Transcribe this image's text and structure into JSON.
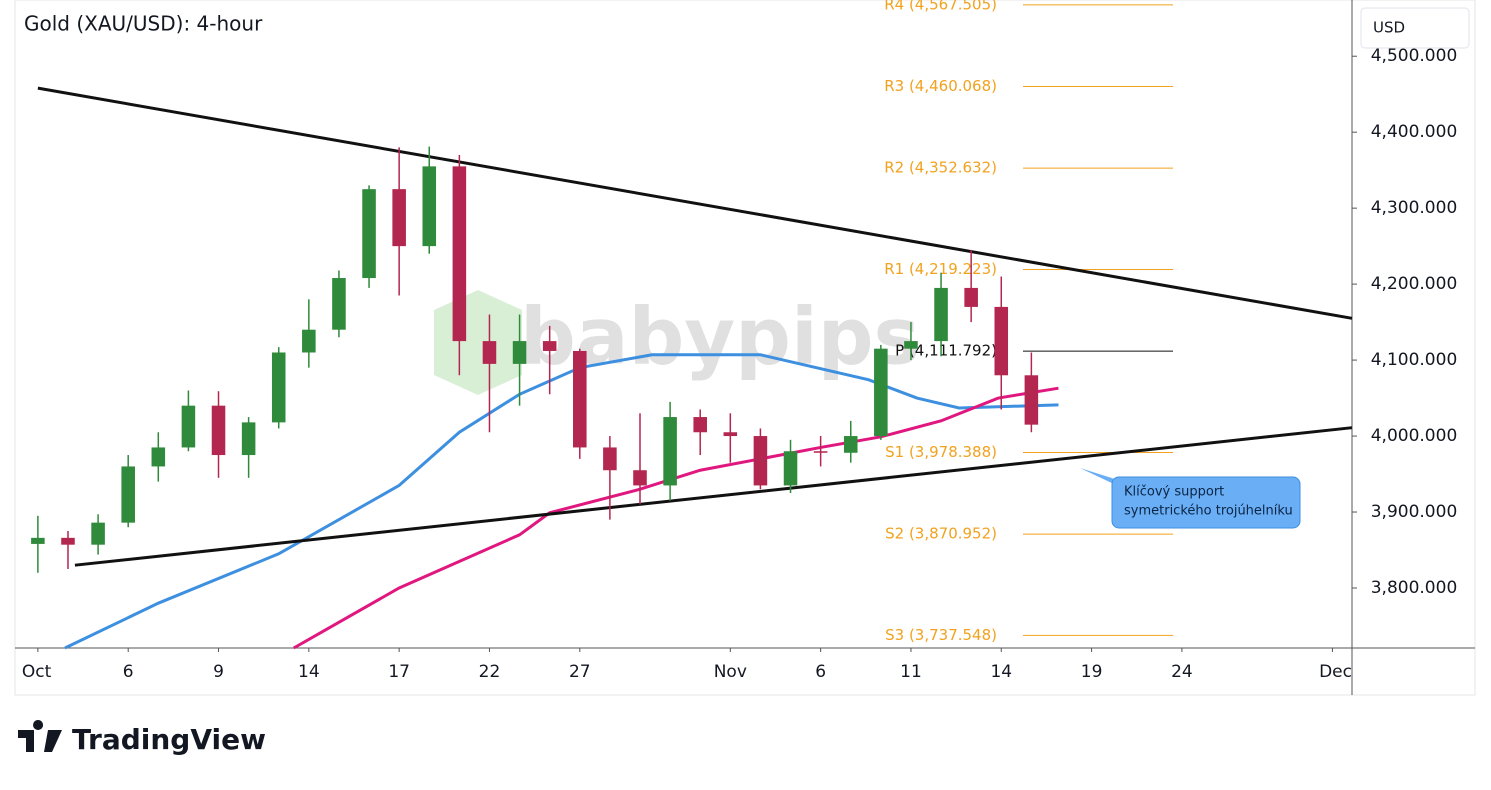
{
  "chart_data": {
    "type": "candlestick",
    "title": "Gold (XAU/USD): 4-hour",
    "currency": "USD",
    "watermark": "babypips",
    "brand": "TradingView",
    "annotation": [
      "Klíčový support",
      "symetrického trojúhelníku"
    ],
    "up_color": "#2f8a3b",
    "down_color": "#b3264f",
    "xlim": [
      -0.76,
      43.65
    ],
    "xticks": [
      {
        "value": 0,
        "label": "Oct"
      },
      {
        "value": 3,
        "label": "6"
      },
      {
        "value": 6,
        "label": "9"
      },
      {
        "value": 9,
        "label": "14"
      },
      {
        "value": 12,
        "label": "17"
      },
      {
        "value": 15,
        "label": "22"
      },
      {
        "value": 18,
        "label": "27"
      },
      {
        "value": 23,
        "label": "Nov"
      },
      {
        "value": 26,
        "label": "6"
      },
      {
        "value": 29,
        "label": "11"
      },
      {
        "value": 32,
        "label": "14"
      },
      {
        "value": 35,
        "label": "19"
      },
      {
        "value": 38,
        "label": "24"
      },
      {
        "value": 43,
        "label": "Dec"
      }
    ],
    "ylim": [
      3721,
      4574
    ],
    "yticks": [
      {
        "value": 3800,
        "label": "3,800.000"
      },
      {
        "value": 3900,
        "label": "3,900.000"
      },
      {
        "value": 4000,
        "label": "4,000.000"
      },
      {
        "value": 4100,
        "label": "4,100.000"
      },
      {
        "value": 4200,
        "label": "4,200.000"
      },
      {
        "value": 4300,
        "label": "4,300.000"
      },
      {
        "value": 4400,
        "label": "4,400.000"
      },
      {
        "value": 4500,
        "label": "4,500.000"
      }
    ],
    "x": [
      0,
      1,
      2,
      3,
      4,
      5,
      6,
      7,
      8,
      9,
      10,
      11,
      12,
      13,
      14,
      15,
      16,
      17,
      18,
      19,
      20,
      21,
      22,
      23,
      24,
      25,
      26,
      27,
      28,
      29,
      30,
      31,
      32,
      33
    ],
    "open": [
      3858,
      3866,
      3857,
      3886,
      3960,
      3985,
      4040,
      3975,
      4018,
      4110,
      4140,
      4208,
      4325,
      4250,
      4355,
      4125,
      4095,
      4125,
      4112,
      3985,
      3955,
      3935,
      4025,
      4005,
      4000,
      3935,
      3980,
      3978,
      4000,
      4115,
      4125,
      4195,
      4170,
      4080
    ],
    "high": [
      3895,
      3875,
      3897,
      3975,
      4005,
      4060,
      4059,
      4025,
      4117,
      4180,
      4218,
      4330,
      4380,
      4381,
      4370,
      4160,
      4160,
      4145,
      4115,
      4000,
      4030,
      4045,
      4035,
      4030,
      4010,
      3995,
      4000,
      4020,
      4120,
      4150,
      4215,
      4245,
      4210,
      4110
    ],
    "low": [
      3820,
      3825,
      3844,
      3880,
      3940,
      3980,
      3945,
      3945,
      4010,
      4090,
      4130,
      4195,
      4185,
      4240,
      4080,
      4005,
      4040,
      4055,
      3970,
      3890,
      3910,
      3915,
      3975,
      3965,
      3930,
      3925,
      3960,
      3965,
      3995,
      4100,
      4105,
      4150,
      4035,
      4005
    ],
    "close": [
      3866,
      3857,
      3886,
      3960,
      3985,
      4040,
      3975,
      4018,
      4110,
      4140,
      4208,
      4325,
      4250,
      4355,
      4125,
      4095,
      4125,
      4112,
      3985,
      3955,
      3935,
      4025,
      4005,
      4000,
      3935,
      3980,
      3978,
      4000,
      4115,
      4125,
      4195,
      4170,
      4080,
      4015
    ],
    "lines": [
      {
        "color": "#3d8fe0",
        "x": [
          0.9,
          4,
          8,
          12,
          14,
          16,
          18,
          20.4,
          24,
          27.6,
          29.2,
          30.6,
          33.9
        ],
        "values": [
          3721,
          3780,
          3845,
          3935,
          4005,
          4055,
          4090,
          4107,
          4107,
          4074,
          4050,
          4037,
          4041
        ]
      },
      {
        "color": "#e0177f",
        "x": [
          8.5,
          12,
          16,
          17,
          20,
          22,
          26,
          28,
          30,
          31.9,
          33.9
        ],
        "values": [
          3721,
          3800,
          3870,
          3899,
          3930,
          3955,
          3985,
          3999,
          4020,
          4050,
          4063
        ]
      },
      {
        "color": "#111111",
        "x": [
          0,
          43.65
        ],
        "values": [
          4458,
          4155
        ]
      },
      {
        "color": "#111111",
        "x": [
          1.23,
          43.65
        ],
        "values": [
          3830,
          4011
        ]
      }
    ],
    "pivots": [
      {
        "label": "R4 (4,567.505)",
        "value": 4567.505,
        "color": "#f2a21f"
      },
      {
        "label": "R3 (4,460.068)",
        "value": 4460.068,
        "color": "#f2a21f"
      },
      {
        "label": "R2 (4,352.632)",
        "value": 4352.632,
        "color": "#f2a21f"
      },
      {
        "label": "R1 (4,219.223)",
        "value": 4219.223,
        "color": "#f2a21f"
      },
      {
        "label": "P (4,111.792)",
        "value": 4111.792,
        "color": "#111111"
      },
      {
        "label": "S1 (3,978.388)",
        "value": 3978.388,
        "color": "#f2a21f"
      },
      {
        "label": "S2 (3,870.952)",
        "value": 3870.952,
        "color": "#f2a21f"
      },
      {
        "label": "S3 (3,737.548)",
        "value": 3737.548,
        "color": "#f2a21f"
      }
    ]
  }
}
